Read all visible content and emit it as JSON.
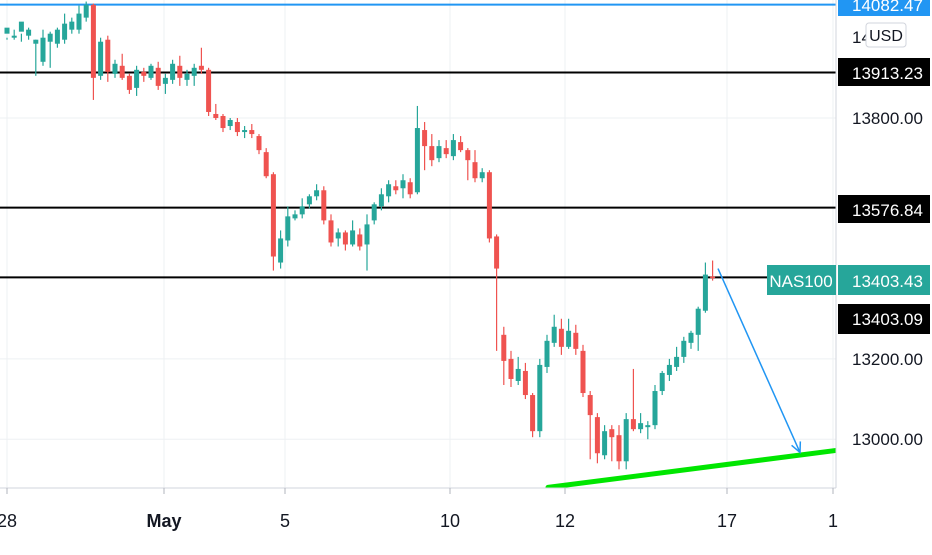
{
  "chart_data": {
    "type": "candlestick",
    "symbol": "NAS100",
    "currency": "USD",
    "colors": {
      "up": "#26a69a",
      "down": "#ef5350",
      "level_line": "#000000",
      "top_line": "#2196f3",
      "trend_line": "#00e600",
      "arrow": "#2196f3",
      "grid": "#eef0f3",
      "axis_text": "#131722"
    },
    "price_axis": {
      "ticks": [
        13800.0,
        13200.0,
        13000.0
      ],
      "tick_labels": [
        "13800.00",
        "13200.00",
        "13000.00"
      ],
      "partial_label": "14",
      "currency_label": "USD",
      "range": [
        12900,
        14090
      ]
    },
    "time_axis": {
      "labels": [
        "28",
        "May",
        "5",
        "10",
        "12",
        "17",
        "1"
      ]
    },
    "level_labels": {
      "top": "14082.47",
      "l1": "13913.23",
      "l2": "13576.84",
      "l3": "13403.09",
      "current_symbol": "NAS100",
      "current_price": "13403.43"
    },
    "levels": [
      {
        "price": 14082.47,
        "kind": "top"
      },
      {
        "price": 13913.23,
        "kind": "support"
      },
      {
        "price": 13576.84,
        "kind": "support"
      },
      {
        "price": 13403.09,
        "kind": "support"
      }
    ],
    "candles": [
      [
        14010,
        14025,
        14000,
        13995
      ],
      [
        14000,
        14005,
        14020,
        13995
      ],
      [
        14015,
        14040,
        14010,
        13990
      ],
      [
        14005,
        14020,
        14025,
        13995
      ],
      [
        13985,
        13995,
        13995,
        13905
      ],
      [
        13940,
        14000,
        14020,
        13930
      ],
      [
        13990,
        14010,
        14015,
        13925
      ],
      [
        13985,
        14020,
        14025,
        13975
      ],
      [
        13995,
        14035,
        14060,
        13985
      ],
      [
        14020,
        14040,
        14050,
        14010
      ],
      [
        14020,
        14060,
        14080,
        14010
      ],
      [
        14050,
        14082,
        14090,
        14040
      ],
      [
        14082,
        13900,
        14085,
        13845
      ],
      [
        13905,
        13990,
        14000,
        13895
      ],
      [
        13995,
        13915,
        14005,
        13890
      ],
      [
        13910,
        13935,
        13945,
        13900
      ],
      [
        13930,
        13900,
        13960,
        13895
      ],
      [
        13905,
        13870,
        13910,
        13860
      ],
      [
        13875,
        13920,
        13930,
        13855
      ],
      [
        13915,
        13905,
        13925,
        13890
      ],
      [
        13900,
        13930,
        13935,
        13895
      ],
      [
        13925,
        13880,
        13940,
        13870
      ],
      [
        13885,
        13900,
        13910,
        13860
      ],
      [
        13895,
        13935,
        13945,
        13885
      ],
      [
        13930,
        13900,
        13955,
        13880
      ],
      [
        13895,
        13910,
        13920,
        13880
      ],
      [
        13905,
        13925,
        13935,
        13880
      ],
      [
        13930,
        13920,
        13975,
        13910
      ],
      [
        13920,
        13815,
        13925,
        13805
      ],
      [
        13810,
        13800,
        13835,
        13795
      ],
      [
        13805,
        13775,
        13810,
        13765
      ],
      [
        13780,
        13795,
        13800,
        13770
      ],
      [
        13790,
        13765,
        13800,
        13755
      ],
      [
        13765,
        13770,
        13780,
        13750
      ],
      [
        13770,
        13760,
        13785,
        13750
      ],
      [
        13755,
        13720,
        13760,
        13710
      ],
      [
        13715,
        13655,
        13725,
        13650
      ],
      [
        13660,
        13455,
        13665,
        13420
      ],
      [
        13440,
        13500,
        13520,
        13425
      ],
      [
        13495,
        13555,
        13580,
        13480
      ],
      [
        13550,
        13560,
        13570,
        13545
      ],
      [
        13560,
        13580,
        13600,
        13550
      ],
      [
        13585,
        13605,
        13610,
        13575
      ],
      [
        13605,
        13620,
        13635,
        13595
      ],
      [
        13620,
        13545,
        13630,
        13535
      ],
      [
        13545,
        13490,
        13560,
        13480
      ],
      [
        13500,
        13515,
        13525,
        13480
      ],
      [
        13515,
        13485,
        13520,
        13470
      ],
      [
        13485,
        13520,
        13545,
        13480
      ],
      [
        13510,
        13480,
        13525,
        13470
      ],
      [
        13485,
        13535,
        13560,
        13420
      ],
      [
        13545,
        13585,
        13590,
        13535
      ],
      [
        13580,
        13610,
        13625,
        13570
      ],
      [
        13605,
        13635,
        13645,
        13590
      ],
      [
        13630,
        13620,
        13645,
        13610
      ],
      [
        13625,
        13645,
        13660,
        13600
      ],
      [
        13640,
        13610,
        13650,
        13600
      ],
      [
        13615,
        13775,
        13830,
        13610
      ],
      [
        13770,
        13730,
        13790,
        13670
      ],
      [
        13730,
        13695,
        13760,
        13680
      ],
      [
        13700,
        13730,
        13745,
        13690
      ],
      [
        13725,
        13710,
        13745,
        13700
      ],
      [
        13705,
        13745,
        13760,
        13695
      ],
      [
        13740,
        13720,
        13755,
        13715
      ],
      [
        13720,
        13695,
        13725,
        13645
      ],
      [
        13690,
        13650,
        13720,
        13640
      ],
      [
        13650,
        13665,
        13675,
        13640
      ],
      [
        13665,
        13500,
        13670,
        13490
      ],
      [
        13505,
        13425,
        13510,
        13220
      ],
      [
        13260,
        13195,
        13280,
        13135
      ],
      [
        13200,
        13150,
        13220,
        13130
      ],
      [
        13145,
        13175,
        13205,
        13135
      ],
      [
        13170,
        13110,
        13190,
        13100
      ],
      [
        13110,
        13020,
        13115,
        13005
      ],
      [
        13020,
        13185,
        13200,
        13005
      ],
      [
        13180,
        13245,
        13260,
        13165
      ],
      [
        13240,
        13280,
        13310,
        13230
      ],
      [
        13275,
        13230,
        13300,
        13210
      ],
      [
        13230,
        13270,
        13300,
        13225
      ],
      [
        13265,
        13225,
        13285,
        13210
      ],
      [
        13220,
        13115,
        13235,
        13105
      ],
      [
        13110,
        13060,
        13120,
        12950
      ],
      [
        13055,
        12965,
        13065,
        12940
      ],
      [
        12960,
        13020,
        13035,
        12950
      ],
      [
        13025,
        13005,
        13035,
        12945
      ],
      [
        13010,
        12945,
        13035,
        12925
      ],
      [
        12945,
        13050,
        13065,
        12925
      ],
      [
        13050,
        13025,
        13175,
        13020
      ],
      [
        13025,
        13040,
        13065,
        13015
      ],
      [
        13030,
        13035,
        13045,
        13000
      ],
      [
        13035,
        13120,
        13135,
        13025
      ],
      [
        13120,
        13165,
        13170,
        13110
      ],
      [
        13160,
        13185,
        13200,
        13145
      ],
      [
        13180,
        13205,
        13230,
        13170
      ],
      [
        13205,
        13245,
        13255,
        13190
      ],
      [
        13240,
        13265,
        13270,
        13225
      ],
      [
        13260,
        13325,
        13330,
        13220
      ],
      [
        13320,
        13410,
        13440,
        13315
      ],
      [
        13405,
        13404,
        13445,
        13395
      ]
    ],
    "drawings": {
      "trend_line": {
        "from": [
          548,
          12880
        ],
        "to": [
          836,
          12972
        ]
      },
      "arrow": {
        "from": [
          718,
          13425
        ],
        "to": [
          800,
          12967
        ]
      }
    }
  }
}
